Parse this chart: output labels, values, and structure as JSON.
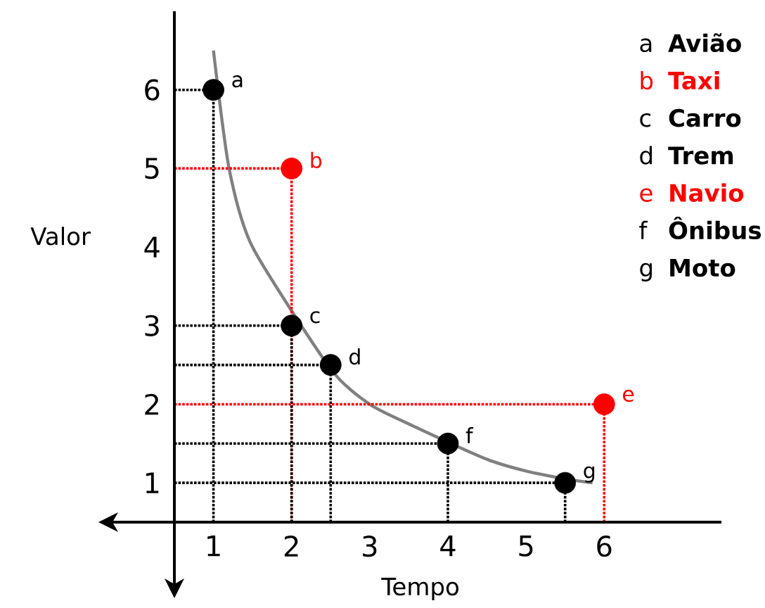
{
  "chart_data": {
    "type": "scatter",
    "xlabel": "Tempo",
    "ylabel": "Valor",
    "xlim": [
      0.5,
      7.5
    ],
    "ylim": [
      0.5,
      7.0
    ],
    "xticks": [
      1,
      2,
      3,
      4,
      5,
      6
    ],
    "yticks": [
      1,
      2,
      3,
      4,
      5,
      6
    ],
    "legend": "top right",
    "series": [
      {
        "name": "Avião",
        "color": "#000000",
        "x": [
          1
        ],
        "values": [
          6
        ]
      },
      {
        "name": "Taxi",
        "color": "#ff0000",
        "x": [
          2
        ],
        "values": [
          5
        ]
      },
      {
        "name": "Carro",
        "color": "#000000",
        "x": [
          2
        ],
        "values": [
          3
        ]
      },
      {
        "name": "Trem",
        "color": "#000000",
        "x": [
          2.5
        ],
        "values": [
          2.5
        ]
      },
      {
        "name": "Navio",
        "color": "#ff0000",
        "x": [
          6
        ],
        "values": [
          2
        ]
      },
      {
        "name": "Ônibus",
        "color": "#000000",
        "x": [
          4
        ],
        "values": [
          1.5
        ]
      },
      {
        "name": "Moto",
        "color": "#000000",
        "x": [
          5.5
        ],
        "values": [
          1
        ]
      },
      {
        "type": "line",
        "color": "#808080",
        "x": [
          1,
          1.2,
          1.5,
          2.5,
          3,
          3.5,
          4.5,
          5,
          5.5,
          5.85
        ],
        "values": [
          6.5,
          5,
          4,
          2.45,
          2,
          1.75,
          1.3,
          1.15,
          1.05,
          1.0
        ]
      }
    ],
    "annotations": [
      {
        "text": "a",
        "x": 1,
        "y": 6
      },
      {
        "text": "b",
        "x": 2,
        "y": 5
      },
      {
        "text": "c",
        "x": 2,
        "y": 3
      },
      {
        "text": "d",
        "x": 2.5,
        "y": 2.5
      },
      {
        "text": "e",
        "x": 6,
        "y": 2
      },
      {
        "text": "f",
        "x": 4,
        "y": 1.5
      },
      {
        "text": "g",
        "x": 5.5,
        "y": 1
      }
    ]
  }
}
